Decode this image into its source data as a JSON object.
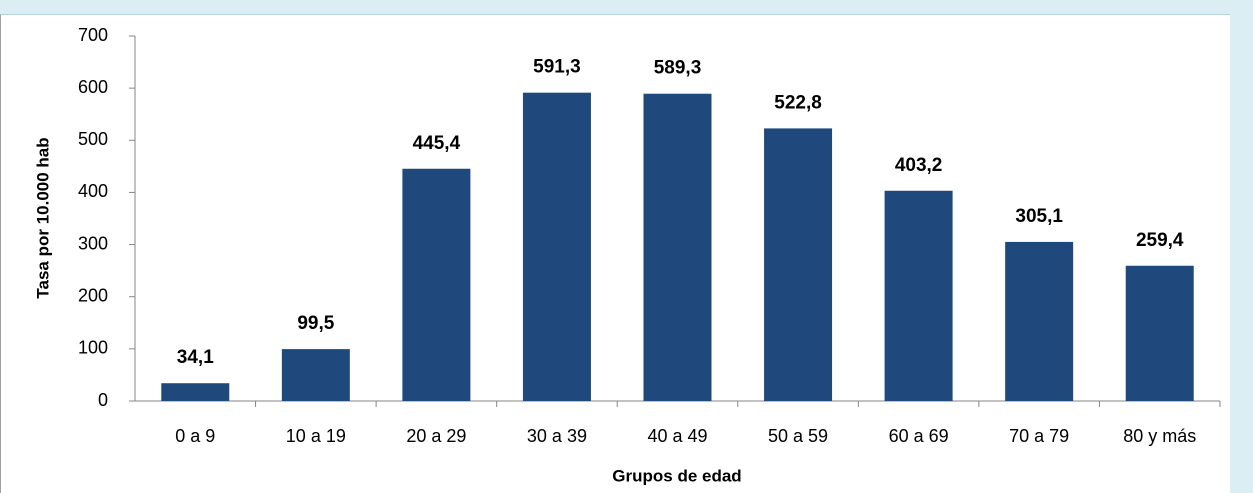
{
  "chart_data": {
    "type": "bar",
    "x_label": "Grupos de edad",
    "y_label": "Tasa por 10.000 hab",
    "categories": [
      "0 a 9",
      "10 a 19",
      "20 a 29",
      "30 a 39",
      "40 a 49",
      "50 a 59",
      "60 a 69",
      "70 a 79",
      "80 y más"
    ],
    "values": [
      34.1,
      99.5,
      445.4,
      591.3,
      589.3,
      522.8,
      403.2,
      305.1,
      259.4
    ],
    "value_labels": [
      "34,1",
      "99,5",
      "445,4",
      "591,3",
      "589,3",
      "522,8",
      "403,2",
      "305,1",
      "259,4"
    ],
    "color": "#1f497d",
    "ylim": [
      0,
      700
    ],
    "yticks": [
      0,
      100,
      200,
      300,
      400,
      500,
      600,
      700
    ],
    "grid": false
  }
}
